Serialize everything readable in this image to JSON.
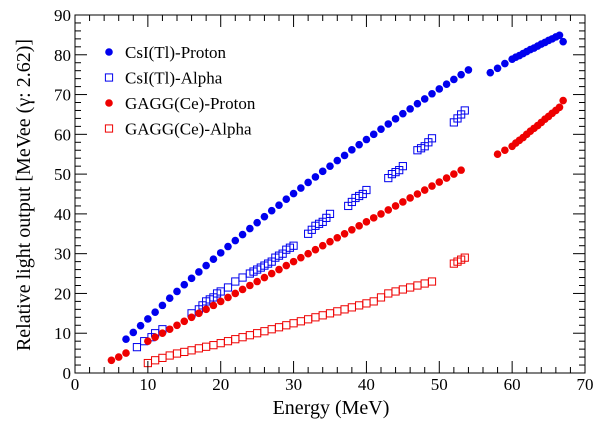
{
  "chart_data": {
    "type": "scatter",
    "title": "",
    "xlabel": "Energy (MeV)",
    "ylabel": "Relative light output [MeVee (γ: 2.62)]",
    "xlim": [
      0,
      70
    ],
    "ylim": [
      0,
      90
    ],
    "x_ticks": [
      0,
      10,
      20,
      30,
      40,
      50,
      60,
      70
    ],
    "y_ticks": [
      0,
      10,
      20,
      30,
      40,
      50,
      60,
      70,
      80,
      90
    ],
    "grid": false,
    "legend_position": "top-left",
    "series": [
      {
        "name": "CsI(Tl)-Proton",
        "marker": "filled-circle",
        "color": "#0000ee",
        "x": [
          7,
          8,
          9,
          10,
          11,
          12,
          13,
          14,
          15,
          16,
          17,
          18,
          19,
          20,
          21,
          22,
          23,
          24,
          25,
          26,
          27,
          28,
          29,
          30,
          31,
          32,
          33,
          34,
          35,
          36,
          37,
          38,
          39,
          40,
          41,
          42,
          43,
          44,
          45,
          46,
          47,
          48,
          49,
          50,
          51,
          52,
          53,
          54,
          57,
          58,
          59,
          60,
          60.5,
          61,
          61.5,
          62,
          62.5,
          63,
          63.5,
          64,
          64.5,
          65,
          65.5,
          66,
          66.5,
          67
        ],
        "y": [
          8.5,
          10.2,
          11.9,
          13.6,
          15.3,
          17.0,
          18.8,
          20.5,
          22.2,
          23.8,
          25.4,
          27.0,
          28.6,
          30.2,
          31.8,
          33.3,
          34.8,
          36.3,
          37.8,
          39.3,
          40.8,
          42.2,
          43.7,
          45.1,
          46.5,
          47.9,
          49.3,
          50.7,
          52.0,
          53.4,
          54.7,
          56.1,
          57.4,
          58.7,
          60.0,
          61.3,
          62.6,
          63.9,
          65.2,
          66.4,
          67.7,
          68.9,
          70.2,
          71.4,
          72.6,
          73.8,
          75.0,
          76.2,
          75.5,
          76.6,
          77.8,
          78.9,
          79.4,
          79.8,
          80.3,
          80.8,
          81.3,
          81.7,
          82.2,
          82.7,
          83.1,
          83.6,
          84.0,
          84.5,
          84.9,
          83.3
        ]
      },
      {
        "name": "CsI(Tl)-Alpha",
        "marker": "open-square",
        "color": "#0000ee",
        "x": [
          8.5,
          9.5,
          10.5,
          11,
          12,
          16,
          17,
          17.5,
          18,
          18.5,
          19,
          19.5,
          20,
          21,
          22,
          23,
          24,
          24.5,
          25,
          25.5,
          26,
          26.5,
          27,
          27.5,
          28,
          28.5,
          29,
          29.5,
          30,
          32,
          32.5,
          33,
          33.5,
          34,
          34.5,
          35,
          37.5,
          38,
          38.5,
          39,
          39.5,
          40,
          43,
          43.5,
          44,
          44.5,
          45,
          47,
          47.5,
          48,
          48.5,
          49,
          52,
          52.5,
          53,
          53.5
        ],
        "y": [
          6.5,
          8,
          9,
          10,
          11,
          15,
          16,
          17,
          18,
          18.5,
          19,
          20,
          20.5,
          21.5,
          23,
          24,
          25,
          25.5,
          26,
          26.5,
          27,
          27.5,
          28,
          29,
          29.5,
          30,
          31,
          31.5,
          32,
          35,
          36,
          37,
          37.5,
          38,
          39,
          40,
          42,
          43,
          44,
          44.5,
          45,
          46,
          49,
          50,
          50.5,
          51,
          52,
          56,
          56.5,
          57,
          58,
          59,
          63,
          64,
          65,
          66
        ]
      },
      {
        "name": "GAGG(Ce)-Proton",
        "marker": "filled-circle",
        "color": "#ee0000",
        "x": [
          5,
          6,
          7,
          10,
          11,
          12,
          13,
          14,
          15,
          16,
          17,
          18,
          19,
          20,
          21,
          22,
          23,
          24,
          25,
          26,
          27,
          28,
          29,
          30,
          31,
          32,
          33,
          34,
          35,
          36,
          37,
          38,
          39,
          40,
          41,
          42,
          43,
          44,
          45,
          46,
          47,
          48,
          49,
          50,
          51,
          52,
          53,
          58,
          59,
          60,
          60.5,
          61,
          61.5,
          62,
          62.5,
          63,
          63.5,
          64,
          64.5,
          65,
          65.5,
          66,
          66.5,
          67
        ],
        "y": [
          3.2,
          4.0,
          5.0,
          8.0,
          9.0,
          10.0,
          11.0,
          12.0,
          13.0,
          14.0,
          15.0,
          16.0,
          17.0,
          18.0,
          19.0,
          20.0,
          21.0,
          22.0,
          23.0,
          24.0,
          25.0,
          26.0,
          27.0,
          28.0,
          29.0,
          30.0,
          31.0,
          32.0,
          33.0,
          34.0,
          35.0,
          36.0,
          37.0,
          38.0,
          39.0,
          40.0,
          41.0,
          42.0,
          43.0,
          44.0,
          45.0,
          46.0,
          47.0,
          48.0,
          49.0,
          50.0,
          51.0,
          55.0,
          56.0,
          57.0,
          57.8,
          58.5,
          59.2,
          60.0,
          60.8,
          61.5,
          62.2,
          63.0,
          63.8,
          64.5,
          65.3,
          66.0,
          66.8,
          68.5
        ]
      },
      {
        "name": "GAGG(Ce)-Alpha",
        "marker": "open-square",
        "color": "#ee0000",
        "x": [
          10,
          11,
          12,
          13,
          14,
          15,
          16,
          17,
          18,
          19,
          20,
          21,
          22,
          23,
          24,
          25,
          26,
          27,
          28,
          29,
          30,
          31,
          32,
          33,
          34,
          35,
          36,
          37,
          38,
          39,
          40,
          41,
          42,
          43,
          44,
          45,
          46,
          47,
          48,
          49,
          52,
          52.5,
          53,
          53.5
        ],
        "y": [
          2.5,
          3.2,
          3.8,
          4.4,
          4.9,
          5.3,
          5.7,
          6.2,
          6.6,
          7.0,
          7.5,
          8.0,
          8.5,
          9.0,
          9.5,
          10.0,
          10.5,
          11.0,
          11.5,
          12.0,
          12.5,
          13.0,
          13.5,
          14.0,
          14.5,
          15.0,
          15.5,
          16.0,
          16.5,
          17.0,
          17.5,
          18.0,
          19.0,
          20.0,
          20.5,
          21.0,
          21.5,
          22.0,
          22.5,
          23.0,
          27.5,
          28.0,
          28.5,
          29.0
        ]
      }
    ]
  }
}
